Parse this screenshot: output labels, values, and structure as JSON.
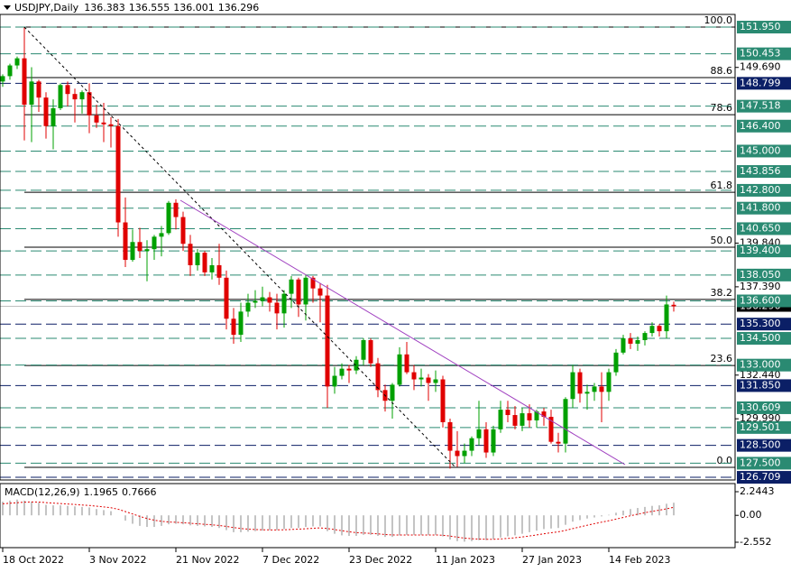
{
  "chart_data": {
    "type": "candlestick",
    "symbol": "USDJPY,Daily",
    "bull_color": "#00a000",
    "bear_color": "#e00000",
    "ylim": [
      126.56,
      152.66
    ],
    "yticks": [
      {
        "value": 149.69,
        "label": "149.690"
      },
      {
        "value": 139.84,
        "label": "139.840"
      },
      {
        "value": 137.39,
        "label": "137.390"
      },
      {
        "value": 132.44,
        "label": "132.440"
      },
      {
        "value": 129.99,
        "label": "129.990"
      }
    ],
    "xticks": [
      {
        "value": 0,
        "label": "18 Oct 2022"
      },
      {
        "value": 12,
        "label": "3 Nov 2022"
      },
      {
        "value": 24,
        "label": "21 Nov 2022"
      },
      {
        "value": 36,
        "label": "7 Dec 2022"
      },
      {
        "value": 48,
        "label": "23 Dec 2022"
      },
      {
        "value": 60,
        "label": "11 Jan 2023"
      },
      {
        "value": 72,
        "label": "27 Jan 2023"
      },
      {
        "value": 84,
        "label": "14 Feb 2023"
      }
    ],
    "levels": [
      {
        "value": 151.95,
        "label": "151.950",
        "color": "#2a8a72"
      },
      {
        "value": 150.453,
        "label": "150.453",
        "color": "#2a8a72"
      },
      {
        "value": 148.799,
        "label": "148.799",
        "color": "#0b1f66"
      },
      {
        "value": 147.518,
        "label": "147.518",
        "color": "#2a8a72"
      },
      {
        "value": 146.4,
        "label": "146.400",
        "color": "#2a8a72"
      },
      {
        "value": 145.0,
        "label": "145.000",
        "color": "#2a8a72"
      },
      {
        "value": 143.856,
        "label": "143.856",
        "color": "#2a8a72"
      },
      {
        "value": 142.8,
        "label": "142.800",
        "color": "#2a8a72"
      },
      {
        "value": 141.8,
        "label": "141.800",
        "color": "#2a8a72"
      },
      {
        "value": 140.65,
        "label": "140.650",
        "color": "#2a8a72"
      },
      {
        "value": 139.4,
        "label": "139.400",
        "color": "#2a8a72"
      },
      {
        "value": 138.05,
        "label": "138.050",
        "color": "#2a8a72"
      },
      {
        "value": 136.6,
        "label": "136.600",
        "color": "#2a8a72"
      },
      {
        "value": 135.3,
        "label": "135.300",
        "color": "#0b1f66"
      },
      {
        "value": 134.5,
        "label": "134.500",
        "color": "#2a8a72"
      },
      {
        "value": 133.0,
        "label": "133.000",
        "color": "#2a8a72"
      },
      {
        "value": 131.85,
        "label": "131.850",
        "color": "#0b1f66"
      },
      {
        "value": 130.609,
        "label": "130.609",
        "color": "#2a8a72"
      },
      {
        "value": 129.501,
        "label": "129.501",
        "color": "#2a8a72"
      },
      {
        "value": 128.5,
        "label": "128.500",
        "color": "#0b1f66"
      },
      {
        "value": 127.5,
        "label": "127.500",
        "color": "#2a8a72"
      },
      {
        "value": 126.709,
        "label": "126.709",
        "color": "#0b1f66"
      }
    ],
    "fib_levels": [
      {
        "value": 151.95,
        "label": "100.0"
      },
      {
        "value": 149.12,
        "label": "88.6"
      },
      {
        "value": 147.04,
        "label": "78.6"
      },
      {
        "value": 142.69,
        "label": "61.8"
      },
      {
        "value": 139.61,
        "label": "50.0"
      },
      {
        "value": 136.68,
        "label": "38.2"
      },
      {
        "value": 132.98,
        "label": "23.6"
      },
      {
        "value": 127.27,
        "label": "0.0"
      }
    ],
    "candles": [
      [
        148.9,
        149.3,
        148.6,
        149.2
      ],
      [
        149.2,
        149.9,
        149.0,
        149.8
      ],
      [
        149.8,
        150.3,
        149.6,
        150.2
      ],
      [
        150.2,
        151.95,
        145.6,
        147.6
      ],
      [
        147.6,
        149.7,
        145.5,
        148.9
      ],
      [
        148.9,
        149.0,
        147.2,
        148.0
      ],
      [
        148.0,
        148.3,
        145.7,
        146.4
      ],
      [
        146.4,
        147.9,
        145.1,
        147.4
      ],
      [
        147.4,
        148.8,
        147.3,
        148.7
      ],
      [
        148.7,
        148.9,
        147.5,
        148.2
      ],
      [
        148.2,
        148.5,
        146.6,
        147.9
      ],
      [
        147.9,
        148.4,
        147.1,
        148.3
      ],
      [
        148.3,
        148.8,
        146.0,
        147.0
      ],
      [
        147.0,
        147.6,
        146.3,
        146.6
      ],
      [
        146.6,
        147.7,
        145.5,
        146.5
      ],
      [
        146.5,
        146.9,
        145.2,
        146.4
      ],
      [
        146.4,
        146.8,
        140.2,
        141.0
      ],
      [
        141.0,
        142.4,
        138.5,
        138.9
      ],
      [
        138.9,
        140.6,
        138.8,
        139.9
      ],
      [
        139.9,
        140.7,
        139.0,
        139.4
      ],
      [
        139.4,
        140.0,
        137.7,
        139.5
      ],
      [
        139.5,
        140.3,
        138.9,
        140.2
      ],
      [
        140.2,
        140.8,
        139.1,
        140.4
      ],
      [
        140.4,
        142.2,
        140.3,
        142.1
      ],
      [
        142.1,
        142.3,
        140.6,
        141.3
      ],
      [
        141.3,
        141.6,
        139.4,
        139.8
      ],
      [
        139.8,
        140.3,
        138.0,
        138.6
      ],
      [
        138.6,
        139.5,
        138.3,
        139.3
      ],
      [
        139.3,
        139.4,
        138.0,
        138.2
      ],
      [
        138.2,
        139.0,
        137.8,
        138.6
      ],
      [
        138.6,
        139.8,
        137.5,
        137.9
      ],
      [
        137.9,
        138.3,
        135.0,
        135.6
      ],
      [
        135.6,
        136.2,
        134.2,
        134.7
      ],
      [
        134.7,
        136.5,
        134.3,
        136.0
      ],
      [
        136.0,
        137.0,
        135.7,
        136.5
      ],
      [
        136.5,
        137.2,
        136.2,
        136.6
      ],
      [
        136.6,
        137.4,
        136.3,
        136.8
      ],
      [
        136.8,
        137.1,
        136.0,
        136.5
      ],
      [
        136.5,
        137.0,
        135.0,
        135.9
      ],
      [
        135.9,
        137.2,
        135.1,
        137.0
      ],
      [
        137.0,
        138.0,
        136.2,
        137.8
      ],
      [
        137.8,
        137.9,
        135.7,
        136.4
      ],
      [
        136.4,
        138.1,
        135.5,
        137.9
      ],
      [
        137.9,
        138.0,
        136.5,
        137.3
      ],
      [
        137.3,
        137.6,
        135.4,
        136.9
      ],
      [
        136.9,
        137.5,
        130.6,
        131.8
      ],
      [
        131.8,
        132.9,
        131.4,
        132.4
      ],
      [
        132.4,
        133.1,
        132.2,
        132.8
      ],
      [
        132.8,
        133.0,
        132.0,
        132.7
      ],
      [
        132.7,
        133.5,
        132.5,
        133.3
      ],
      [
        133.3,
        134.5,
        133.0,
        134.4
      ],
      [
        134.4,
        134.5,
        132.9,
        133.1
      ],
      [
        133.1,
        133.4,
        131.2,
        131.6
      ],
      [
        131.6,
        131.9,
        130.4,
        131.0
      ],
      [
        131.0,
        132.0,
        130.0,
        131.9
      ],
      [
        131.9,
        134.0,
        131.8,
        133.6
      ],
      [
        133.6,
        134.3,
        132.5,
        132.6
      ],
      [
        132.6,
        133.0,
        131.6,
        132.2
      ],
      [
        132.2,
        132.8,
        131.8,
        132.3
      ],
      [
        132.3,
        132.5,
        131.0,
        132.0
      ],
      [
        132.0,
        132.7,
        131.5,
        132.2
      ],
      [
        132.2,
        132.4,
        129.5,
        129.8
      ],
      [
        129.8,
        130.0,
        127.2,
        128.2
      ],
      [
        128.2,
        129.3,
        127.3,
        127.9
      ],
      [
        127.9,
        128.6,
        127.5,
        128.2
      ],
      [
        128.2,
        129.0,
        127.9,
        128.9
      ],
      [
        128.9,
        131.0,
        128.5,
        129.4
      ],
      [
        129.4,
        129.8,
        127.8,
        128.1
      ],
      [
        128.1,
        129.6,
        127.9,
        129.4
      ],
      [
        129.4,
        131.0,
        129.2,
        130.5
      ],
      [
        130.5,
        131.0,
        129.8,
        130.2
      ],
      [
        130.2,
        130.7,
        129.4,
        129.6
      ],
      [
        129.6,
        130.6,
        129.3,
        130.3
      ],
      [
        130.3,
        130.8,
        129.5,
        129.9
      ],
      [
        129.9,
        130.5,
        129.5,
        130.4
      ],
      [
        130.4,
        130.6,
        129.6,
        130.1
      ],
      [
        130.1,
        130.5,
        128.6,
        128.7
      ],
      [
        128.7,
        129.2,
        128.1,
        128.6
      ],
      [
        128.6,
        131.2,
        128.1,
        131.1
      ],
      [
        131.1,
        133.0,
        130.6,
        132.6
      ],
      [
        132.6,
        132.8,
        130.9,
        131.4
      ],
      [
        131.4,
        131.9,
        130.5,
        131.5
      ],
      [
        131.5,
        132.0,
        131.0,
        131.8
      ],
      [
        131.8,
        132.6,
        129.8,
        131.5
      ],
      [
        131.5,
        132.8,
        131.0,
        132.6
      ],
      [
        132.6,
        133.9,
        132.4,
        133.7
      ],
      [
        133.7,
        134.7,
        133.6,
        134.5
      ],
      [
        134.5,
        134.8,
        133.9,
        134.2
      ],
      [
        134.2,
        134.6,
        133.8,
        134.4
      ],
      [
        134.4,
        134.9,
        134.1,
        134.8
      ],
      [
        134.8,
        135.4,
        134.6,
        135.2
      ],
      [
        135.2,
        135.3,
        134.6,
        134.9
      ],
      [
        134.9,
        136.9,
        134.5,
        136.4
      ],
      [
        136.383,
        136.555,
        136.001,
        136.296
      ]
    ],
    "macd": {
      "name": "MACD(12,26,9)",
      "ylim": [
        -2.552,
        2.2443
      ],
      "yticks": [
        {
          "value": 2.2443,
          "label": "2.2443"
        },
        {
          "value": 0,
          "label": "0.00"
        },
        {
          "value": -2.552,
          "label": "-2.552"
        }
      ],
      "hist_color": "#b0b0b0",
      "signal_color": "#e00000",
      "hist": [
        1.3,
        1.4,
        1.5,
        1.4,
        1.3,
        1.2,
        1.0,
        0.95,
        0.95,
        0.9,
        0.85,
        0.8,
        0.75,
        0.6,
        0.5,
        0.4,
        0.0,
        -0.5,
        -0.8,
        -1.0,
        -1.1,
        -1.1,
        -1.0,
        -0.85,
        -0.8,
        -0.85,
        -0.95,
        -1.0,
        -1.05,
        -1.1,
        -1.2,
        -1.4,
        -1.6,
        -1.6,
        -1.55,
        -1.5,
        -1.45,
        -1.4,
        -1.4,
        -1.3,
        -1.2,
        -1.2,
        -1.1,
        -1.05,
        -1.05,
        -1.5,
        -1.75,
        -1.9,
        -1.95,
        -1.95,
        -1.85,
        -1.85,
        -1.95,
        -2.05,
        -2.05,
        -1.9,
        -1.85,
        -1.85,
        -1.85,
        -1.85,
        -1.85,
        -2.0,
        -2.3,
        -2.45,
        -2.5,
        -2.45,
        -2.35,
        -2.35,
        -2.25,
        -2.1,
        -2.0,
        -1.9,
        -1.75,
        -1.6,
        -1.45,
        -1.3,
        -1.25,
        -1.2,
        -0.9,
        -0.6,
        -0.45,
        -0.3,
        -0.2,
        -0.1,
        0.05,
        0.25,
        0.45,
        0.6,
        0.7,
        0.8,
        0.9,
        0.95,
        1.1,
        1.1965
      ],
      "signal": [
        1.1,
        1.15,
        1.2,
        1.25,
        1.27,
        1.26,
        1.21,
        1.16,
        1.12,
        1.08,
        1.03,
        0.98,
        0.94,
        0.87,
        0.8,
        0.72,
        0.58,
        0.36,
        0.13,
        -0.1,
        -0.3,
        -0.46,
        -0.57,
        -0.63,
        -0.66,
        -0.7,
        -0.75,
        -0.8,
        -0.85,
        -0.9,
        -0.96,
        -1.05,
        -1.16,
        -1.25,
        -1.31,
        -1.35,
        -1.37,
        -1.38,
        -1.38,
        -1.37,
        -1.34,
        -1.31,
        -1.27,
        -1.23,
        -1.19,
        -1.25,
        -1.35,
        -1.46,
        -1.56,
        -1.64,
        -1.68,
        -1.71,
        -1.76,
        -1.82,
        -1.86,
        -1.87,
        -1.87,
        -1.87,
        -1.87,
        -1.87,
        -1.86,
        -1.89,
        -1.97,
        -2.07,
        -2.16,
        -2.22,
        -2.25,
        -2.27,
        -2.27,
        -2.24,
        -2.19,
        -2.13,
        -2.05,
        -1.96,
        -1.86,
        -1.75,
        -1.65,
        -1.56,
        -1.43,
        -1.26,
        -1.1,
        -0.94,
        -0.79,
        -0.65,
        -0.51,
        -0.36,
        -0.2,
        -0.04,
        0.11,
        0.25,
        0.38,
        0.49,
        0.62,
        0.7666
      ]
    }
  }
}
